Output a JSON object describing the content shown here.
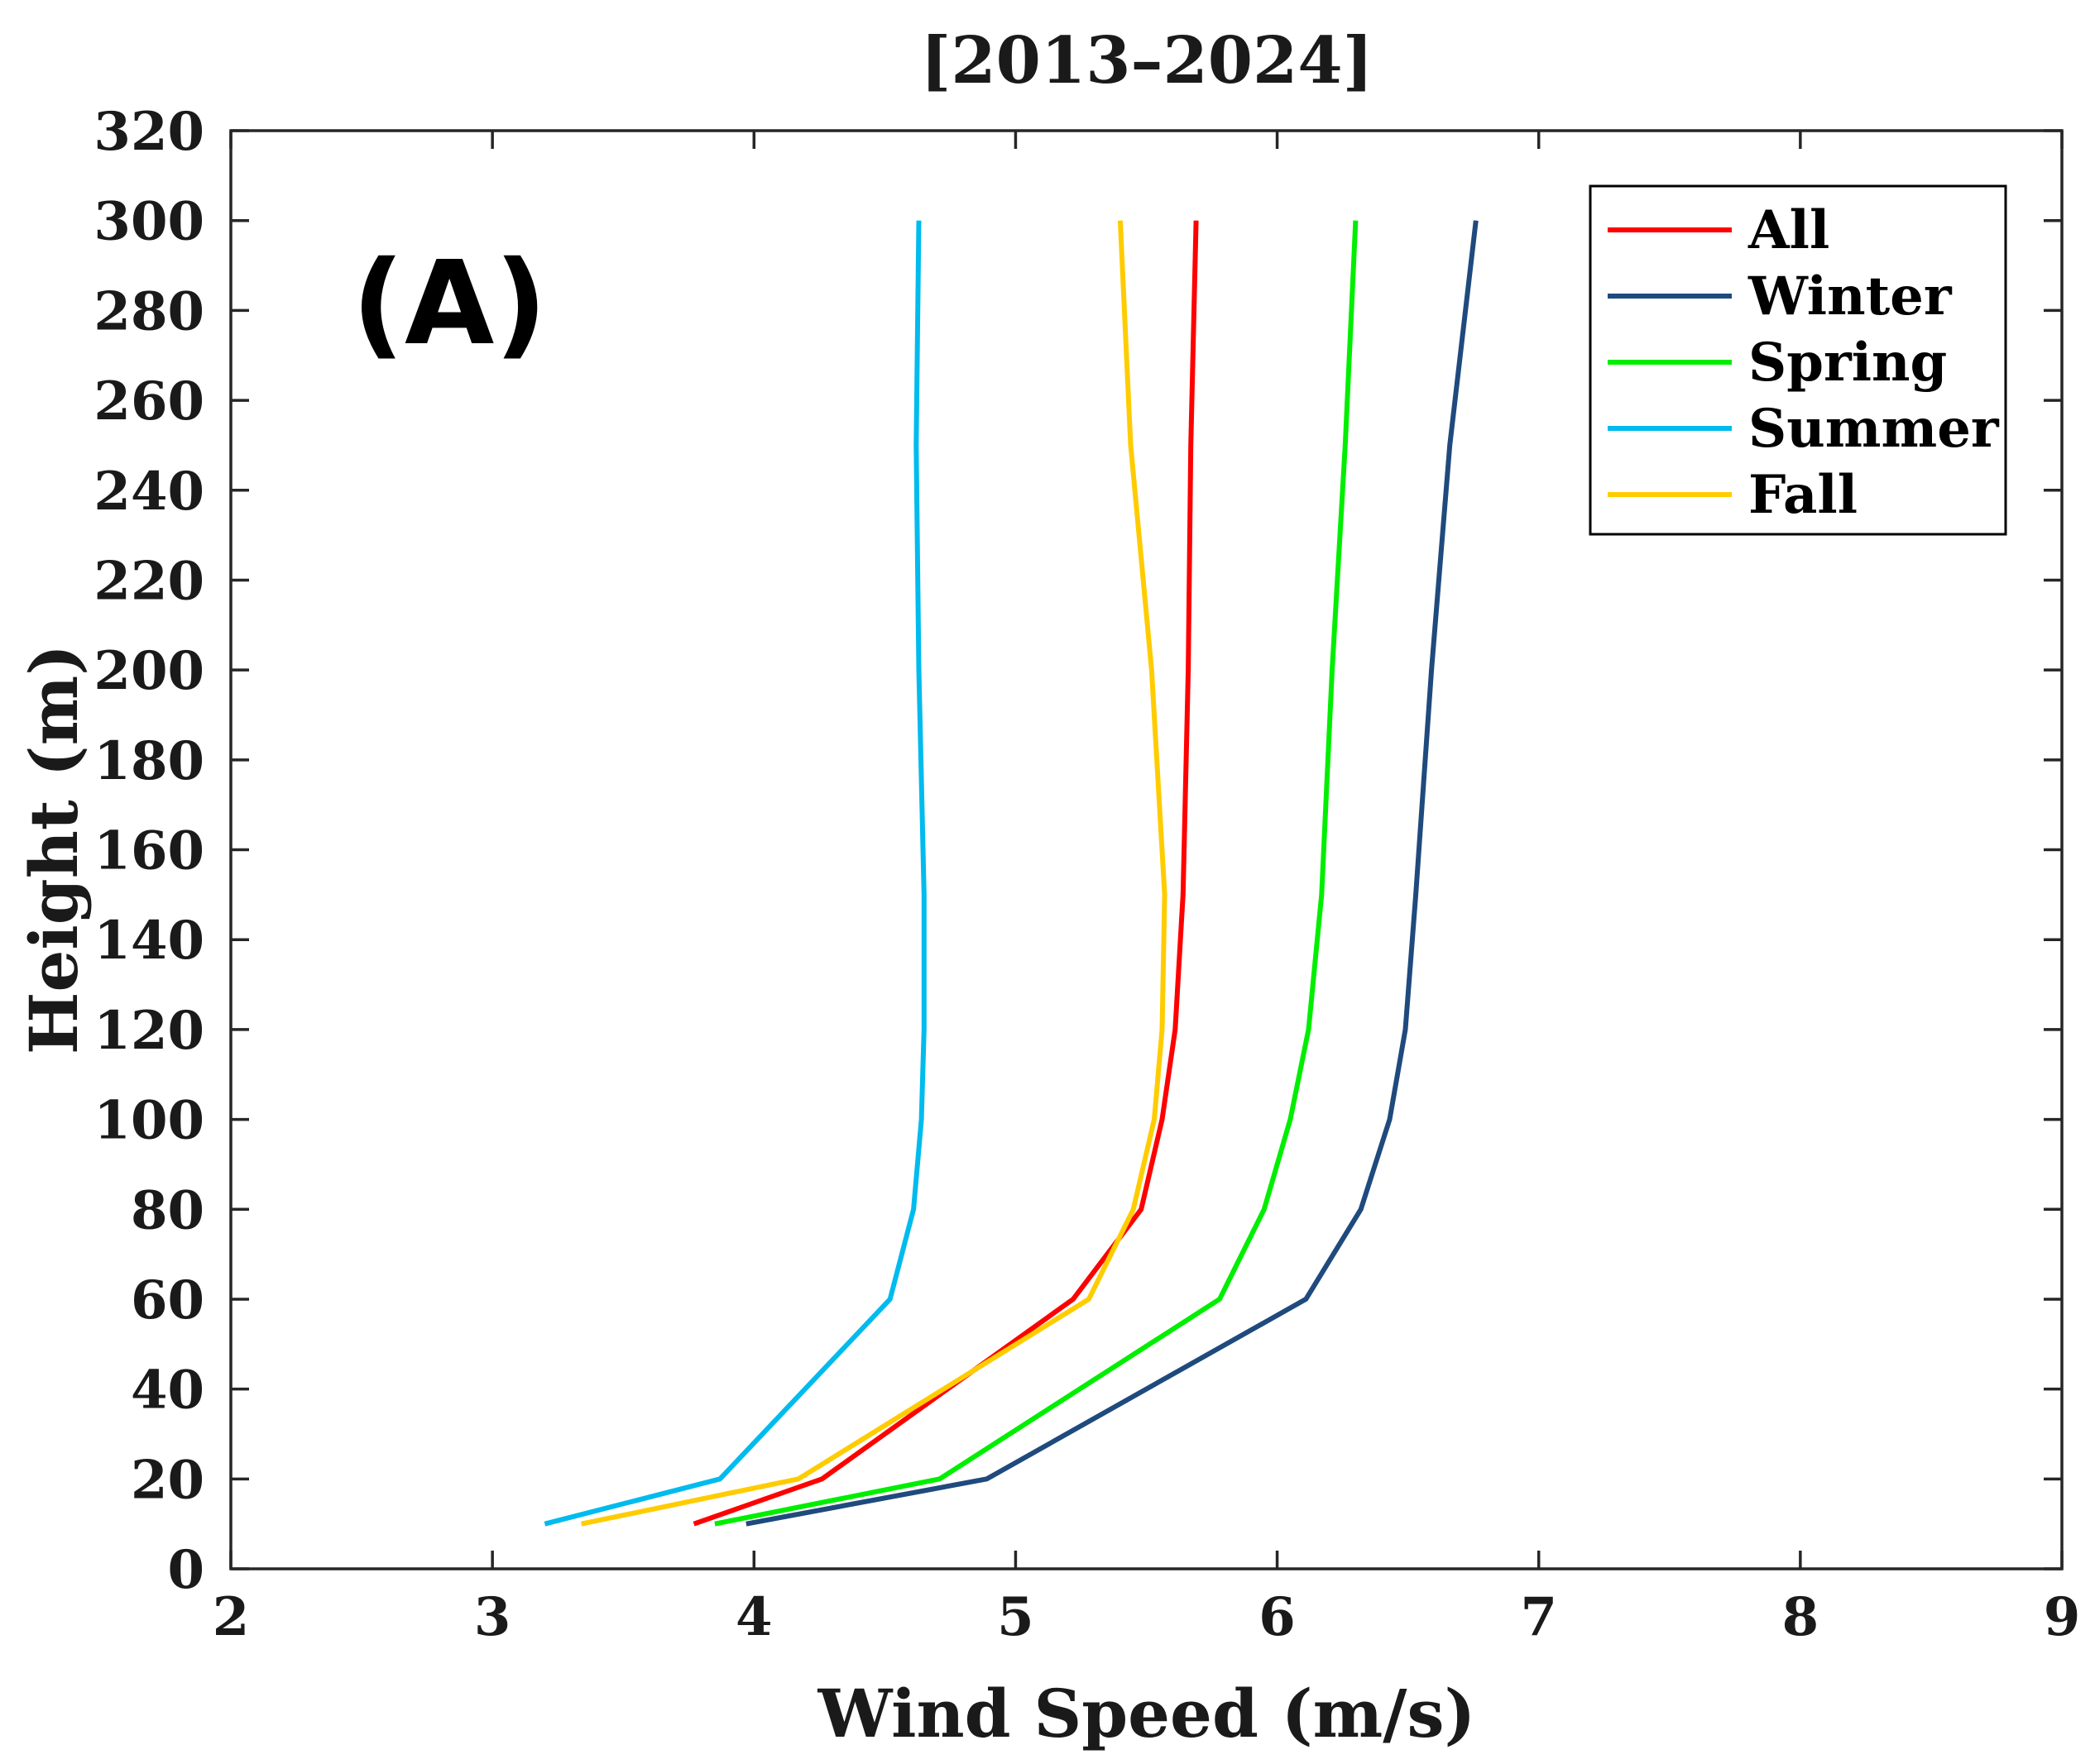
{
  "chart_data": {
    "type": "line",
    "title": "[2013–2024]",
    "panel_label": "(A)",
    "xlabel": "Wind Speed (m/s)",
    "ylabel": "Height (m)",
    "xlim": [
      2,
      9
    ],
    "ylim": [
      0,
      320
    ],
    "xticks": [
      2,
      3,
      4,
      5,
      6,
      7,
      8,
      9
    ],
    "yticks": [
      0,
      20,
      40,
      60,
      80,
      100,
      120,
      140,
      160,
      180,
      200,
      220,
      240,
      260,
      280,
      300,
      320
    ],
    "grid": false,
    "legend_position": "top-right",
    "heights": [
      10,
      20,
      60,
      80,
      100,
      120,
      150,
      200,
      250,
      300
    ],
    "series": [
      {
        "name": "All",
        "color": "#ff0000",
        "values": [
          3.77,
          4.26,
          5.22,
          5.48,
          5.56,
          5.61,
          5.64,
          5.66,
          5.67,
          5.69
        ]
      },
      {
        "name": "Winter",
        "color": "#1f4a7d",
        "values": [
          3.97,
          4.89,
          6.11,
          6.32,
          6.43,
          6.49,
          6.53,
          6.59,
          6.66,
          6.76
        ]
      },
      {
        "name": "Spring",
        "color": "#00ee00",
        "values": [
          3.85,
          4.71,
          5.78,
          5.95,
          6.05,
          6.12,
          6.17,
          6.21,
          6.26,
          6.3
        ]
      },
      {
        "name": "Summer",
        "color": "#00bbee",
        "values": [
          3.2,
          3.87,
          4.52,
          4.61,
          4.64,
          4.65,
          4.65,
          4.63,
          4.62,
          4.63
        ]
      },
      {
        "name": "Fall",
        "color": "#ffcc00",
        "values": [
          3.34,
          4.17,
          5.28,
          5.45,
          5.53,
          5.56,
          5.57,
          5.52,
          5.44,
          5.4
        ]
      }
    ]
  }
}
